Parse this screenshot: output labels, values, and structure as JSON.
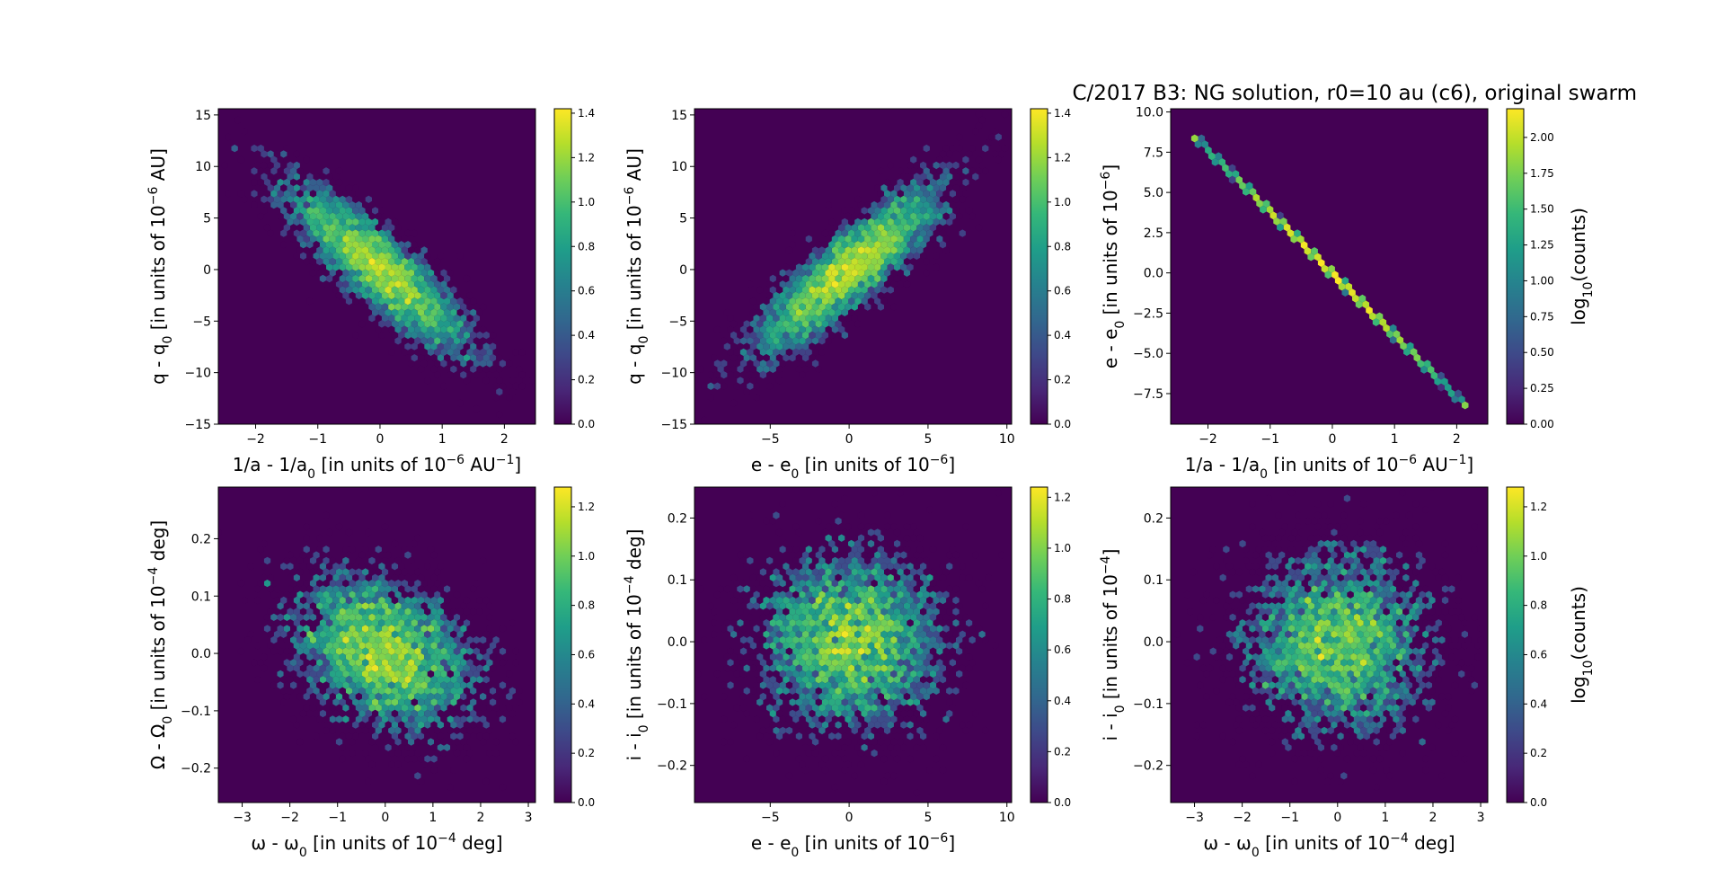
{
  "figure": {
    "title": "C/2017 B3: NG solution, r0=10 au (c6), original swarm"
  },
  "colors": {
    "background": "#440154",
    "colormap": [
      "#440154",
      "#482878",
      "#3e4989",
      "#31688e",
      "#26828e",
      "#1f9e89",
      "#35b779",
      "#6ece58",
      "#b5de2b",
      "#fde725"
    ]
  },
  "chart_data": [
    {
      "id": "p1",
      "type": "heatmap",
      "style": "hexbin",
      "xlabel": [
        "1/a - 1/a",
        "0",
        " [in units of 10",
        "−6",
        " AU",
        "−1",
        "]"
      ],
      "ylabel": [
        "q - q",
        "0",
        " [in units of 10",
        "−6",
        " AU]"
      ],
      "xlim": [
        -2.6,
        2.5
      ],
      "ylim": [
        -15,
        15.6
      ],
      "xticks": [
        -2,
        -1,
        0,
        1,
        2
      ],
      "xticklabels": [
        "−2",
        "−1",
        "0",
        "1",
        "2"
      ],
      "yticks": [
        -15,
        -10,
        -5,
        0,
        5,
        10,
        15
      ],
      "yticklabels": [
        "−15",
        "−10",
        "−5",
        "0",
        "5",
        "10",
        "15"
      ],
      "distribution": {
        "mx": 0,
        "my": 0,
        "sx": 0.75,
        "sy": 4.2,
        "rho": -0.87,
        "n": 4200,
        "peak": 1.4
      },
      "colorbar": {
        "vmin": 0,
        "vmax": 1.42,
        "ticks": [
          0,
          0.2,
          0.4,
          0.6,
          0.8,
          1.0,
          1.2,
          1.4
        ],
        "ticklabels": [
          "0.0",
          "0.2",
          "0.4",
          "0.6",
          "0.8",
          "1.0",
          "1.2",
          "1.4"
        ],
        "label": []
      }
    },
    {
      "id": "p2",
      "type": "heatmap",
      "style": "hexbin",
      "xlabel": [
        "e - e",
        "0",
        " [in units of 10",
        "−6",
        "]"
      ],
      "ylabel": [
        "q - q",
        "0",
        " [in units of 10",
        "−6",
        " AU]"
      ],
      "xlim": [
        -9.8,
        10.3
      ],
      "ylim": [
        -15,
        15.6
      ],
      "xticks": [
        -5,
        0,
        5,
        10
      ],
      "xticklabels": [
        "−5",
        "0",
        "5",
        "10"
      ],
      "yticks": [
        -15,
        -10,
        -5,
        0,
        5,
        10,
        15
      ],
      "yticklabels": [
        "−15",
        "−10",
        "−5",
        "0",
        "5",
        "10",
        "15"
      ],
      "distribution": {
        "mx": 0,
        "my": 0,
        "sx": 3.0,
        "sy": 4.2,
        "rho": 0.87,
        "n": 4200,
        "peak": 1.4
      },
      "colorbar": {
        "vmin": 0,
        "vmax": 1.42,
        "ticks": [
          0,
          0.2,
          0.4,
          0.6,
          0.8,
          1.0,
          1.2,
          1.4
        ],
        "ticklabels": [
          "0.0",
          "0.2",
          "0.4",
          "0.6",
          "0.8",
          "1.0",
          "1.2",
          "1.4"
        ],
        "label": []
      }
    },
    {
      "id": "p3",
      "type": "heatmap",
      "style": "hexbin-line",
      "xlabel": [
        "1/a - 1/a",
        "0",
        " [in units of 10",
        "−6",
        " AU",
        "−1",
        "]"
      ],
      "ylabel": [
        "e - e",
        "0",
        " [in units of 10",
        "−6",
        "]"
      ],
      "xlim": [
        -2.6,
        2.5
      ],
      "ylim": [
        -9.4,
        10.2
      ],
      "xticks": [
        -2,
        -1,
        0,
        1,
        2
      ],
      "xticklabels": [
        "−2",
        "−1",
        "0",
        "1",
        "2"
      ],
      "yticks": [
        -7.5,
        -5,
        -2.5,
        0,
        2.5,
        5,
        7.5,
        10
      ],
      "yticklabels": [
        "−7.5",
        "−5.0",
        "−2.5",
        "0.0",
        "2.5",
        "5.0",
        "7.5",
        "10.0"
      ],
      "line": {
        "x0": -2.2,
        "y0": 8.4,
        "x1": 2.1,
        "y1": -8.1,
        "sigma": 0.75,
        "peak": 2.2
      },
      "colorbar": {
        "vmin": 0,
        "vmax": 2.2,
        "ticks": [
          0,
          0.25,
          0.5,
          0.75,
          1.0,
          1.25,
          1.5,
          1.75,
          2.0
        ],
        "ticklabels": [
          "0.00",
          "0.25",
          "0.50",
          "0.75",
          "1.00",
          "1.25",
          "1.50",
          "1.75",
          "2.00"
        ],
        "label": [
          "log",
          "10",
          "(counts)"
        ]
      }
    },
    {
      "id": "p4",
      "type": "heatmap",
      "style": "hexbin",
      "xlabel": [
        "ω - ω",
        "0",
        " [in units of 10",
        "−4",
        " deg]"
      ],
      "ylabel": [
        "Ω - Ω",
        "0",
        " [in units of 10",
        "−4",
        " deg]"
      ],
      "xlim": [
        -3.5,
        3.15
      ],
      "ylim": [
        -0.26,
        0.29
      ],
      "xticks": [
        -3,
        -2,
        -1,
        0,
        1,
        2,
        3
      ],
      "xticklabels": [
        "−3",
        "−2",
        "−1",
        "0",
        "1",
        "2",
        "3"
      ],
      "yticks": [
        -0.2,
        -0.1,
        0,
        0.1,
        0.2
      ],
      "yticklabels": [
        "−0.2",
        "−0.1",
        "0.0",
        "0.1",
        "0.2"
      ],
      "distribution": {
        "mx": 0,
        "my": 0,
        "sx": 1.0,
        "sy": 0.07,
        "rho": -0.3,
        "n": 4200,
        "peak": 1.25
      },
      "colorbar": {
        "vmin": 0,
        "vmax": 1.28,
        "ticks": [
          0,
          0.2,
          0.4,
          0.6,
          0.8,
          1.0,
          1.2
        ],
        "ticklabels": [
          "0.0",
          "0.2",
          "0.4",
          "0.6",
          "0.8",
          "1.0",
          "1.2"
        ],
        "label": []
      }
    },
    {
      "id": "p5",
      "type": "heatmap",
      "style": "hexbin",
      "xlabel": [
        "e - e",
        "0",
        " [in units of 10",
        "−6",
        "]"
      ],
      "ylabel": [
        "i - i",
        "0",
        " [in units of 10",
        "−4",
        " deg]"
      ],
      "xlim": [
        -9.8,
        10.3
      ],
      "ylim": [
        -0.26,
        0.25
      ],
      "xticks": [
        -5,
        0,
        5,
        10
      ],
      "xticklabels": [
        "−5",
        "0",
        "5",
        "10"
      ],
      "yticks": [
        -0.2,
        -0.1,
        0,
        0.1,
        0.2
      ],
      "yticklabels": [
        "−0.2",
        "−0.1",
        "0.0",
        "0.1",
        "0.2"
      ],
      "distribution": {
        "mx": 0,
        "my": 0,
        "sx": 3.0,
        "sy": 0.075,
        "rho": 0.0,
        "n": 4200,
        "peak": 1.22
      },
      "colorbar": {
        "vmin": 0,
        "vmax": 1.24,
        "ticks": [
          0,
          0.2,
          0.4,
          0.6,
          0.8,
          1.0,
          1.2
        ],
        "ticklabels": [
          "0.0",
          "0.2",
          "0.4",
          "0.6",
          "0.8",
          "1.0",
          "1.2"
        ],
        "label": []
      }
    },
    {
      "id": "p6",
      "type": "heatmap",
      "style": "hexbin",
      "xlabel": [
        "ω - ω",
        "0",
        " [in units of 10",
        "−4",
        " deg]"
      ],
      "ylabel": [
        "i - i",
        "0",
        " [in units of 10",
        "−4",
        "]"
      ],
      "xlim": [
        -3.5,
        3.15
      ],
      "ylim": [
        -0.26,
        0.25
      ],
      "xticks": [
        -3,
        -2,
        -1,
        0,
        1,
        2,
        3
      ],
      "xticklabels": [
        "−3",
        "−2",
        "−1",
        "0",
        "1",
        "2",
        "3"
      ],
      "yticks": [
        -0.2,
        -0.1,
        0,
        0.1,
        0.2
      ],
      "yticklabels": [
        "−0.2",
        "−0.1",
        "0.0",
        "0.1",
        "0.2"
      ],
      "distribution": {
        "mx": 0,
        "my": 0,
        "sx": 1.0,
        "sy": 0.075,
        "rho": 0.0,
        "n": 4200,
        "peak": 1.25
      },
      "colorbar": {
        "vmin": 0,
        "vmax": 1.28,
        "ticks": [
          0,
          0.2,
          0.4,
          0.6,
          0.8,
          1.0,
          1.2
        ],
        "ticklabels": [
          "0.0",
          "0.2",
          "0.4",
          "0.6",
          "0.8",
          "1.0",
          "1.2"
        ],
        "label": [
          "log",
          "10",
          "(counts)"
        ]
      }
    }
  ]
}
